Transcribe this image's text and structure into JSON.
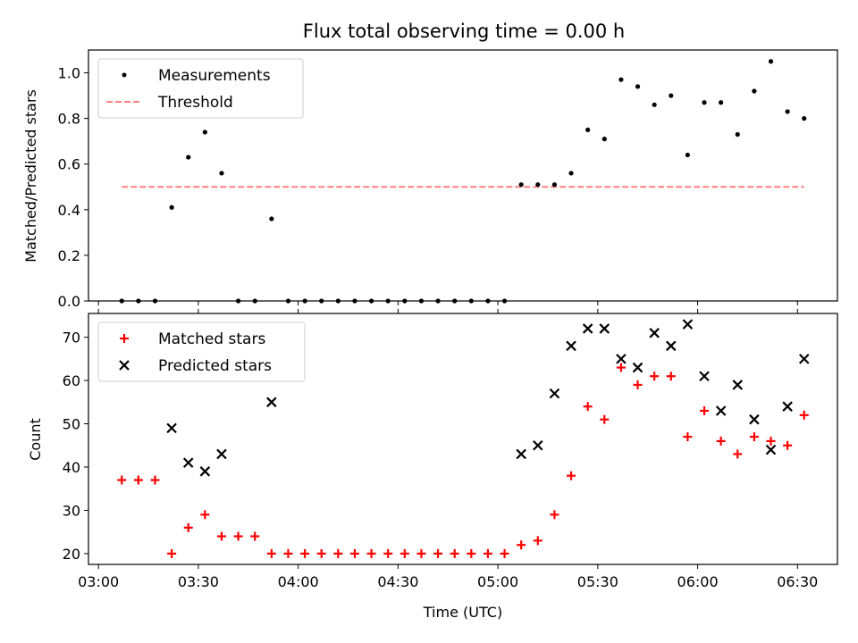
{
  "figure": {
    "title": "Flux total observing time = 0.00 h",
    "xlabel": "Time (UTC)"
  },
  "colors": {
    "measurements": "#000000",
    "threshold": "#ff8080",
    "matched": "#ff0000",
    "predicted": "#000000"
  },
  "chart_data": [
    {
      "type": "scatter",
      "panel": "top",
      "title": "Flux total observing time = 0.00 h",
      "xlabel": "",
      "ylabel": "Matched/Predicted stars",
      "xlim": [
        "02:57",
        "06:42"
      ],
      "ylim": [
        0,
        1.1
      ],
      "xticks": [
        "03:00",
        "03:30",
        "04:00",
        "04:30",
        "05:00",
        "05:30",
        "06:00",
        "06:30"
      ],
      "yticks": [
        "0.0",
        "0.2",
        "0.4",
        "0.6",
        "0.8",
        "1.0"
      ],
      "legend": "top-left",
      "grid": false,
      "x": [
        "03:07",
        "03:12",
        "03:17",
        "03:22",
        "03:27",
        "03:32",
        "03:37",
        "03:42",
        "03:47",
        "03:52",
        "03:57",
        "04:02",
        "04:07",
        "04:12",
        "04:17",
        "04:22",
        "04:27",
        "04:32",
        "04:37",
        "04:42",
        "04:47",
        "04:52",
        "04:57",
        "05:02",
        "05:07",
        "05:12",
        "05:17",
        "05:22",
        "05:27",
        "05:32",
        "05:37",
        "05:42",
        "05:47",
        "05:52",
        "05:57",
        "06:02",
        "06:07",
        "06:12",
        "06:17",
        "06:22",
        "06:27",
        "06:32"
      ],
      "series": [
        {
          "name": "Measurements",
          "marker": "dot",
          "values": [
            0,
            0,
            0,
            0.41,
            0.63,
            0.74,
            0.56,
            0,
            0,
            0.36,
            0,
            0,
            0,
            0,
            0,
            0,
            0,
            0,
            0,
            0,
            0,
            0,
            0,
            0,
            0.51,
            0.51,
            0.51,
            0.56,
            0.75,
            0.71,
            0.97,
            0.94,
            0.86,
            0.9,
            0.64,
            0.87,
            0.87,
            0.73,
            0.92,
            1.05,
            0.83,
            0.8
          ]
        },
        {
          "name": "Threshold",
          "marker": "dashed-line",
          "x": [
            "03:07",
            "06:32"
          ],
          "values": [
            0.5,
            0.5
          ]
        }
      ]
    },
    {
      "type": "scatter",
      "panel": "bottom",
      "xlabel": "Time (UTC)",
      "ylabel": "Count",
      "xlim": [
        "02:57",
        "06:42"
      ],
      "ylim": [
        17.5,
        75.5
      ],
      "xticks": [
        "03:00",
        "03:30",
        "04:00",
        "04:30",
        "05:00",
        "05:30",
        "06:00",
        "06:30"
      ],
      "yticks": [
        "20",
        "30",
        "40",
        "50",
        "60",
        "70"
      ],
      "legend": "top-left",
      "grid": false,
      "series": [
        {
          "name": "Matched stars",
          "marker": "plus",
          "x": [
            "03:07",
            "03:12",
            "03:17",
            "03:22",
            "03:27",
            "03:32",
            "03:37",
            "03:42",
            "03:47",
            "03:52",
            "03:57",
            "04:02",
            "04:07",
            "04:12",
            "04:17",
            "04:22",
            "04:27",
            "04:32",
            "04:37",
            "04:42",
            "04:47",
            "04:52",
            "04:57",
            "05:02",
            "05:07",
            "05:12",
            "05:17",
            "05:22",
            "05:27",
            "05:32",
            "05:37",
            "05:42",
            "05:47",
            "05:52",
            "05:57",
            "06:02",
            "06:07",
            "06:12",
            "06:17",
            "06:22",
            "06:27",
            "06:32"
          ],
          "values": [
            37,
            37,
            37,
            20,
            26,
            29,
            24,
            24,
            24,
            20,
            20,
            20,
            20,
            20,
            20,
            20,
            20,
            20,
            20,
            20,
            20,
            20,
            20,
            20,
            22,
            23,
            29,
            38,
            54,
            51,
            63,
            59,
            61,
            61,
            47,
            53,
            46,
            43,
            47,
            46,
            45,
            52
          ]
        },
        {
          "name": "Predicted stars",
          "marker": "x",
          "x": [
            "03:22",
            "03:27",
            "03:32",
            "03:37",
            "03:52",
            "05:07",
            "05:12",
            "05:17",
            "05:22",
            "05:27",
            "05:32",
            "05:37",
            "05:42",
            "05:47",
            "05:52",
            "05:57",
            "06:02",
            "06:07",
            "06:12",
            "06:17",
            "06:22",
            "06:27",
            "06:32"
          ],
          "values": [
            49,
            41,
            39,
            43,
            55,
            43,
            45,
            57,
            68,
            72,
            72,
            65,
            63,
            71,
            68,
            73,
            61,
            53,
            59,
            51,
            44,
            54,
            65
          ]
        }
      ]
    }
  ]
}
